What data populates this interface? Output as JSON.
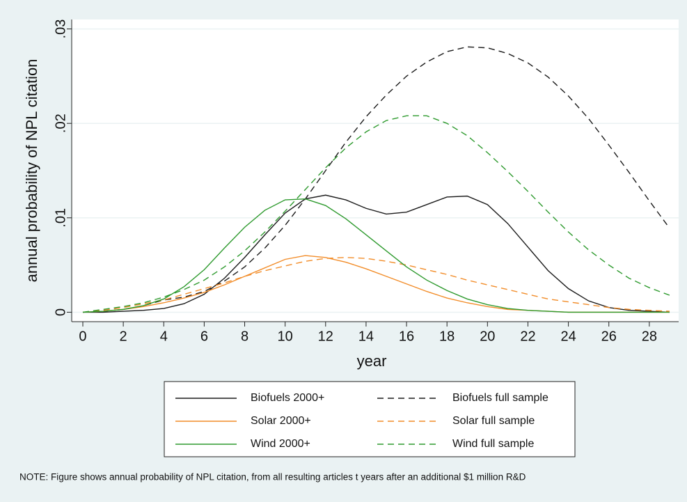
{
  "chart_data": {
    "type": "line",
    "x_label": "year",
    "y_label": "annual probability of NPL citation",
    "note": "NOTE: Figure shows annual probability of NPL citation, from all resulting articles t years after an additional $1 million R&D",
    "x": [
      0,
      1,
      2,
      3,
      4,
      5,
      6,
      7,
      8,
      9,
      10,
      11,
      12,
      13,
      14,
      15,
      16,
      17,
      18,
      19,
      20,
      21,
      22,
      23,
      24,
      25,
      26,
      27,
      28,
      29
    ],
    "xlim": [
      -0.55,
      29.45
    ],
    "xticks": [
      0,
      2,
      4,
      6,
      8,
      10,
      12,
      14,
      16,
      18,
      20,
      22,
      24,
      26,
      28
    ],
    "ylim": [
      -0.001,
      0.031
    ],
    "yticks": [
      0,
      {
        "value": 0.01,
        "label": ".01"
      },
      {
        "value": 0.02,
        "label": ".02"
      },
      {
        "value": 0.03,
        "label": ".03"
      }
    ],
    "grid": true,
    "series": [
      {
        "name": "Biofuels 2000+",
        "color": "#1a1a1a",
        "dash": false,
        "values": [
          0,
          0,
          0.0001,
          0.0002,
          0.0004,
          0.0009,
          0.0019,
          0.0036,
          0.0058,
          0.0082,
          0.0105,
          0.012,
          0.0124,
          0.0119,
          0.011,
          0.0104,
          0.0106,
          0.0114,
          0.0122,
          0.0123,
          0.0114,
          0.0094,
          0.0069,
          0.0044,
          0.0025,
          0.0012,
          0.0005,
          0.0002,
          0.0001,
          0
        ]
      },
      {
        "name": "Biofuels full sample",
        "color": "#1a1a1a",
        "dash": true,
        "values": [
          0,
          0.0001,
          0.0003,
          0.0007,
          0.0013,
          0.0016,
          0.0022,
          0.0033,
          0.0048,
          0.0068,
          0.0092,
          0.012,
          0.015,
          0.018,
          0.0207,
          0.023,
          0.025,
          0.0265,
          0.0276,
          0.0281,
          0.028,
          0.0274,
          0.0264,
          0.0249,
          0.0229,
          0.0205,
          0.0177,
          0.0148,
          0.0118,
          0.0089
        ]
      },
      {
        "name": "Solar 2000+",
        "color": "#f28c28",
        "dash": false,
        "values": [
          0,
          0.0001,
          0.0003,
          0.0006,
          0.001,
          0.0015,
          0.0021,
          0.0029,
          0.0038,
          0.0047,
          0.0056,
          0.006,
          0.0058,
          0.0053,
          0.0046,
          0.0038,
          0.003,
          0.0022,
          0.0015,
          0.001,
          0.0006,
          0.0003,
          0.0002,
          0.0001,
          0,
          0,
          0,
          0,
          0,
          0
        ]
      },
      {
        "name": "Solar full sample",
        "color": "#f28c28",
        "dash": true,
        "values": [
          0,
          0.0002,
          0.0005,
          0.0009,
          0.0013,
          0.0019,
          0.0025,
          0.0031,
          0.0038,
          0.0044,
          0.0049,
          0.0054,
          0.0057,
          0.0058,
          0.0057,
          0.0054,
          0.005,
          0.0045,
          0.004,
          0.0034,
          0.0029,
          0.0024,
          0.0019,
          0.0014,
          0.0011,
          0.0008,
          0.0005,
          0.0003,
          0.0002,
          0.0001
        ]
      },
      {
        "name": "Wind 2000+",
        "color": "#2e9a2e",
        "dash": false,
        "values": [
          0,
          0.0001,
          0.0003,
          0.0007,
          0.0014,
          0.0027,
          0.0045,
          0.0068,
          0.009,
          0.0108,
          0.0119,
          0.012,
          0.0113,
          0.0099,
          0.0082,
          0.0065,
          0.0048,
          0.0034,
          0.0023,
          0.0014,
          0.0008,
          0.0004,
          0.0002,
          0.0001,
          0,
          0,
          0,
          0,
          0,
          0
        ]
      },
      {
        "name": "Wind full sample",
        "color": "#2e9a2e",
        "dash": true,
        "values": [
          0,
          0.0003,
          0.0006,
          0.001,
          0.0016,
          0.0024,
          0.0034,
          0.0048,
          0.0065,
          0.0085,
          0.0107,
          0.013,
          0.0153,
          0.0174,
          0.0191,
          0.0203,
          0.0208,
          0.0208,
          0.02,
          0.0187,
          0.0169,
          0.0149,
          0.0128,
          0.0106,
          0.0085,
          0.0066,
          0.005,
          0.0036,
          0.0026,
          0.0018
        ]
      }
    ]
  }
}
